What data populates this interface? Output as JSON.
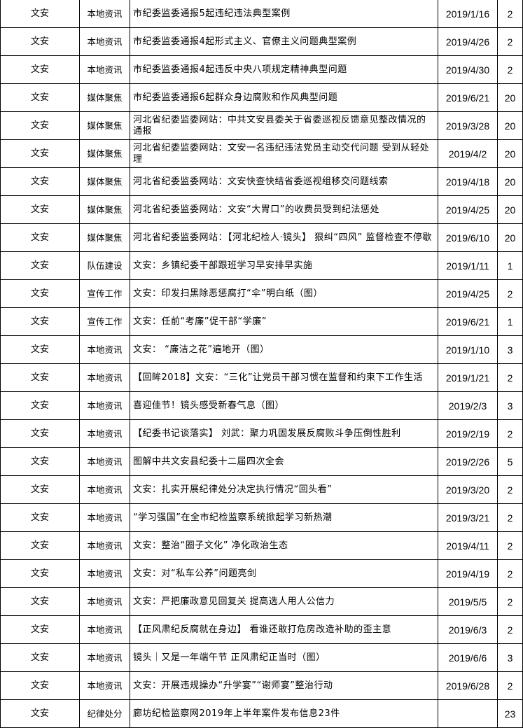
{
  "rows": [
    {
      "region": "文安",
      "category": "本地资讯",
      "title": "市纪委监委通报5起违纪违法典型案例",
      "date": "2019/1/16",
      "count": "2"
    },
    {
      "region": "文安",
      "category": "本地资讯",
      "title": "市纪委监委通报4起形式主义、官僚主义问题典型案例",
      "date": "2019/4/26",
      "count": "2"
    },
    {
      "region": "文安",
      "category": "本地资讯",
      "title": "市纪委监委通报4起违反中央八项规定精神典型问题",
      "date": "2019/4/30",
      "count": "2"
    },
    {
      "region": "文安",
      "category": "媒体聚焦",
      "title": "市纪委监委通报6起群众身边腐败和作风典型问题",
      "date": "2019/6/21",
      "count": "20"
    },
    {
      "region": "文安",
      "category": "媒体聚焦",
      "title": "河北省纪委监委网站：中共文安县委关于省委巡视反馈意见整改情况的通报",
      "date": "2019/3/28",
      "count": "20"
    },
    {
      "region": "文安",
      "category": "媒体聚焦",
      "title": "河北省纪委监委网站：文安一名违纪违法党员主动交代问题 受到从轻处理",
      "date": "2019/4/2",
      "count": "20"
    },
    {
      "region": "文安",
      "category": "媒体聚焦",
      "title": "河北省纪委监委网站：文安快查快结省委巡视组移交问题线索",
      "date": "2019/4/18",
      "count": "20"
    },
    {
      "region": "文安",
      "category": "媒体聚焦",
      "title": "河北省纪委监委网站：文安“大胃口”的收费员受到纪法惩处",
      "date": "2019/4/25",
      "count": "20"
    },
    {
      "region": "文安",
      "category": "媒体聚焦",
      "title": "河北省纪委监委网站：【河北纪检人·镜头】 狠纠“四风” 监督检查不停歇",
      "date": "2019/6/10",
      "count": "20"
    },
    {
      "region": "文安",
      "category": "队伍建设",
      "title": "文安：乡镇纪委干部跟班学习早安排早实施",
      "date": "2019/1/11",
      "count": "1"
    },
    {
      "region": "文安",
      "category": "宣传工作",
      "title": "文安：印发扫黑除恶惩腐打“伞”明白纸（图）",
      "date": "2019/4/25",
      "count": "2"
    },
    {
      "region": "文安",
      "category": "宣传工作",
      "title": "文安：任前“考廉”促干部“学廉”",
      "date": "2019/6/21",
      "count": "1"
    },
    {
      "region": "文安",
      "category": "本地资讯",
      "title": "文安： “廉洁之花”遍地开（图）",
      "date": "2019/1/10",
      "count": "3"
    },
    {
      "region": "文安",
      "category": "本地资讯",
      "title": "【回眸2018】文安：“三化”让党员干部习惯在监督和约束下工作生活",
      "date": "2019/1/21",
      "count": "2"
    },
    {
      "region": "文安",
      "category": "本地资讯",
      "title": "喜迎佳节！镜头感受新春气息（图）",
      "date": "2019/2/3",
      "count": "3"
    },
    {
      "region": "文安",
      "category": "本地资讯",
      "title": "【纪委书记谈落实】 刘武：聚力巩固发展反腐败斗争压倒性胜利",
      "date": "2019/2/19",
      "count": "2"
    },
    {
      "region": "文安",
      "category": "本地资讯",
      "title": "图解中共文安县纪委十二届四次全会",
      "date": "2019/2/26",
      "count": "5"
    },
    {
      "region": "文安",
      "category": "本地资讯",
      "title": "文安：扎实开展纪律处分决定执行情况“回头看”",
      "date": "2019/3/20",
      "count": "2"
    },
    {
      "region": "文安",
      "category": "本地资讯",
      "title": "“学习强国”在全市纪检监察系统掀起学习新热潮",
      "date": "2019/3/21",
      "count": "2"
    },
    {
      "region": "文安",
      "category": "本地资讯",
      "title": "文安：整治“圈子文化” 净化政治生态",
      "date": "2019/4/11",
      "count": "2"
    },
    {
      "region": "文安",
      "category": "本地资讯",
      "title": "文安：对“私车公养”问题亮剑",
      "date": "2019/4/19",
      "count": "2"
    },
    {
      "region": "文安",
      "category": "本地资讯",
      "title": "文安：严把廉政意见回复关 提高选人用人公信力",
      "date": "2019/5/5",
      "count": "2"
    },
    {
      "region": "文安",
      "category": "本地资讯",
      "title": "【正风肃纪反腐就在身边】 看谁还敢打危房改造补助的歪主意",
      "date": "2019/6/3",
      "count": "2"
    },
    {
      "region": "文安",
      "category": "本地资讯",
      "title": "镜头｜又是一年端午节 正风肃纪正当时（图）",
      "date": "2019/6/6",
      "count": "3"
    },
    {
      "region": "文安",
      "category": "本地资讯",
      "title": "文安：开展违规操办“升学宴”“谢师宴”整治行动",
      "date": "2019/6/28",
      "count": "2"
    },
    {
      "region": "文安",
      "category": "纪律处分",
      "title": "廊坊纪检监察网2019年上半年案件发布信息23件",
      "date": "",
      "count": "23"
    }
  ]
}
